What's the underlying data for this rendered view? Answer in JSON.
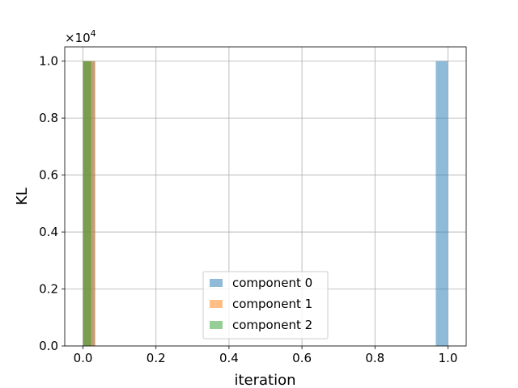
{
  "chart_data": {
    "type": "bar",
    "xlabel": "iteration",
    "ylabel": "KL",
    "y_offset_text": "×10",
    "y_offset_exponent": "4",
    "xlim": [
      -0.05,
      1.05
    ],
    "ylim": [
      0,
      1.05
    ],
    "x_ticks": [
      0.0,
      0.2,
      0.4,
      0.6,
      0.8,
      1.0
    ],
    "x_tick_labels": [
      "0.0",
      "0.2",
      "0.4",
      "0.6",
      "0.8",
      "1.0"
    ],
    "y_ticks": [
      0.0,
      0.2,
      0.4,
      0.6,
      0.8,
      1.0
    ],
    "y_tick_labels": [
      "0.0",
      "0.2",
      "0.4",
      "0.6",
      "0.8",
      "1.0"
    ],
    "grid": true,
    "legend_position": "bottom-center",
    "series": [
      {
        "name": "component 0",
        "color": "#1f77b4",
        "opacity": 0.5,
        "bars": [
          {
            "x0": 0.0,
            "x1": 0.0333,
            "value": 1.0
          },
          {
            "x0": 0.9667,
            "x1": 1.0,
            "value": 1.0
          }
        ]
      },
      {
        "name": "component 1",
        "color": "#ff7f0e",
        "opacity": 0.5,
        "bars": [
          {
            "x0": 0.0,
            "x1": 0.0333,
            "value": 1.0
          }
        ]
      },
      {
        "name": "component 2",
        "color": "#2ca02c",
        "opacity": 0.5,
        "bars": [
          {
            "x0": 0.0,
            "x1": 0.0222,
            "value": 1.0
          }
        ]
      }
    ]
  }
}
